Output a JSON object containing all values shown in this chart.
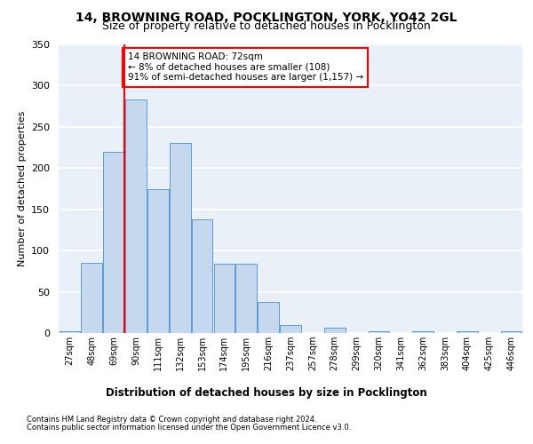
{
  "title1": "14, BROWNING ROAD, POCKLINGTON, YORK, YO42 2GL",
  "title2": "Size of property relative to detached houses in Pocklington",
  "xlabel": "Distribution of detached houses by size in Pocklington",
  "ylabel": "Number of detached properties",
  "categories": [
    "27sqm",
    "48sqm",
    "69sqm",
    "90sqm",
    "111sqm",
    "132sqm",
    "153sqm",
    "174sqm",
    "195sqm",
    "216sqm",
    "237sqm",
    "257sqm",
    "278sqm",
    "299sqm",
    "320sqm",
    "341sqm",
    "362sqm",
    "383sqm",
    "404sqm",
    "425sqm",
    "446sqm"
  ],
  "values": [
    2,
    85,
    220,
    283,
    175,
    230,
    138,
    84,
    84,
    38,
    10,
    0,
    6,
    0,
    2,
    0,
    2,
    0,
    2,
    0,
    2
  ],
  "bar_color": "#c5d8ed",
  "bar_edge_color": "#5b9bd5",
  "vline_color": "red",
  "vline_x_index": 2,
  "annotation_text": "14 BROWNING ROAD: 72sqm\n← 8% of detached houses are smaller (108)\n91% of semi-detached houses are larger (1,157) →",
  "annotation_box_color": "white",
  "annotation_box_edge_color": "red",
  "ylim": [
    0,
    350
  ],
  "yticks": [
    0,
    50,
    100,
    150,
    200,
    250,
    300,
    350
  ],
  "footer1": "Contains HM Land Registry data © Crown copyright and database right 2024.",
  "footer2": "Contains public sector information licensed under the Open Government Licence v3.0.",
  "bg_color": "#eaf0f8",
  "grid_color": "white",
  "title1_fontsize": 10,
  "title2_fontsize": 9
}
